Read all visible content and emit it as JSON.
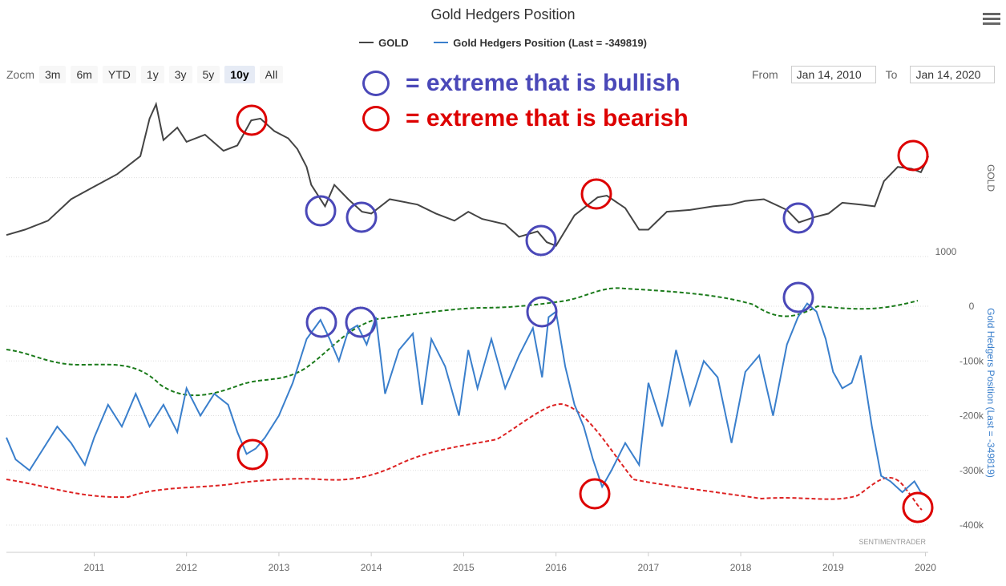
{
  "header": {
    "title": "Gold Hedgers Position"
  },
  "legend": {
    "items": [
      "GOLD",
      "Gold Hedgers Position (Last = -349819)"
    ]
  },
  "zoom": {
    "label": "Zocm",
    "buttons": [
      "3m",
      "6m",
      "YTD",
      "1y",
      "3y",
      "5y",
      "10y",
      "All"
    ],
    "active": "10y"
  },
  "range": {
    "from_label": "From",
    "from_value": "Jan 14, 2010",
    "to_label": "To",
    "to_value": "Jan 14, 2020"
  },
  "annotations": {
    "bullish_text": "= extreme that is bullish",
    "bullish_color": "#4a48b8",
    "bearish_text": "= extreme that is bearish",
    "bearish_color": "#dd0000"
  },
  "credit": "SENTIMENTRADER",
  "colors": {
    "gold": "#444444",
    "hedgers": "#3a7fcc",
    "upper_band": "#1a7a1a",
    "lower_band": "#dd2222",
    "bullish": "#4a48b8",
    "bearish": "#dd0000",
    "gridline": "#dddddd"
  },
  "chart_data": [
    {
      "type": "line",
      "series": [
        {
          "name": "GOLD",
          "x": [
            2010.05,
            2010.25,
            2010.5,
            2010.75,
            2011.0,
            2011.25,
            2011.5,
            2011.6,
            2011.67,
            2011.75,
            2011.9,
            2012.0,
            2012.2,
            2012.4,
            2012.55,
            2012.7,
            2012.8,
            2012.95,
            2013.1,
            2013.2,
            2013.3,
            2013.35,
            2013.5,
            2013.6,
            2013.75,
            2013.9,
            2014.0,
            2014.2,
            2014.5,
            2014.7,
            2014.9,
            2015.05,
            2015.2,
            2015.45,
            2015.6,
            2015.8,
            2015.9,
            2016.0,
            2016.2,
            2016.45,
            2016.55,
            2016.75,
            2016.9,
            2017.0,
            2017.2,
            2017.45,
            2017.7,
            2017.9,
            2018.05,
            2018.25,
            2018.5,
            2018.63,
            2018.8,
            2018.95,
            2019.1,
            2019.3,
            2019.45,
            2019.55,
            2019.7,
            2019.85,
            2019.95,
            2020.0,
            2020.03
          ],
          "y": [
            1120,
            1150,
            1200,
            1320,
            1390,
            1460,
            1560,
            1770,
            1850,
            1650,
            1720,
            1640,
            1680,
            1590,
            1620,
            1760,
            1770,
            1700,
            1660,
            1600,
            1500,
            1400,
            1280,
            1400,
            1320,
            1250,
            1240,
            1320,
            1290,
            1240,
            1200,
            1250,
            1210,
            1180,
            1110,
            1140,
            1080,
            1060,
            1230,
            1330,
            1340,
            1270,
            1150,
            1150,
            1250,
            1260,
            1280,
            1290,
            1310,
            1320,
            1260,
            1190,
            1220,
            1240,
            1300,
            1290,
            1280,
            1420,
            1500,
            1490,
            1470,
            1520,
            1560
          ],
          "ylim": [
            1000,
            1900
          ]
        }
      ],
      "axis_labels": [
        "GOLD"
      ],
      "tick_labels": {
        "y": [
          "1000"
        ]
      }
    },
    {
      "type": "line",
      "series": [
        {
          "name": "Gold Hedgers Position (Last = -349819)",
          "x": [
            2010.05,
            2010.15,
            2010.3,
            2010.45,
            2010.6,
            2010.75,
            2010.9,
            2011.0,
            2011.15,
            2011.3,
            2011.45,
            2011.6,
            2011.75,
            2011.9,
            2012.0,
            2012.15,
            2012.3,
            2012.45,
            2012.55,
            2012.65,
            2012.75,
            2012.85,
            2013.0,
            2013.15,
            2013.3,
            2013.45,
            2013.55,
            2013.65,
            2013.75,
            2013.85,
            2013.95,
            2014.05,
            2014.15,
            2014.3,
            2014.45,
            2014.55,
            2014.65,
            2014.8,
            2014.95,
            2015.05,
            2015.15,
            2015.3,
            2015.45,
            2015.6,
            2015.75,
            2015.85,
            2015.92,
            2016.0,
            2016.1,
            2016.2,
            2016.3,
            2016.4,
            2016.5,
            2016.6,
            2016.75,
            2016.9,
            2017.0,
            2017.15,
            2017.3,
            2017.45,
            2017.6,
            2017.75,
            2017.9,
            2018.05,
            2018.2,
            2018.35,
            2018.5,
            2018.62,
            2018.72,
            2018.82,
            2018.92,
            2019.0,
            2019.1,
            2019.2,
            2019.3,
            2019.42,
            2019.52,
            2019.62,
            2019.75,
            2019.88,
            2019.95,
            2020.03
          ],
          "y": [
            -240,
            -280,
            -300,
            -260,
            -220,
            -250,
            -290,
            -240,
            -180,
            -220,
            -160,
            -220,
            -180,
            -230,
            -150,
            -200,
            -160,
            -180,
            -230,
            -270,
            -260,
            -240,
            -200,
            -140,
            -60,
            -25,
            -60,
            -100,
            -45,
            -35,
            -70,
            -20,
            -160,
            -80,
            -50,
            -180,
            -60,
            -110,
            -200,
            -80,
            -150,
            -60,
            -150,
            -90,
            -40,
            -130,
            -20,
            -10,
            -110,
            -180,
            -220,
            -280,
            -330,
            -300,
            -250,
            -290,
            -140,
            -220,
            -80,
            -180,
            -100,
            -130,
            -250,
            -120,
            -90,
            -200,
            -70,
            -20,
            5,
            -10,
            -60,
            -120,
            -150,
            -140,
            -90,
            -220,
            -310,
            -320,
            -340,
            -320,
            -340,
            -350
          ],
          "ylim": [
            -400,
            0
          ]
        }
      ],
      "axis_labels": [
        "Gold Hedgers Position (Last = -349819)"
      ],
      "tick_labels": {
        "y": [
          "0",
          "-100k",
          "-200k",
          "-300k",
          "-400k"
        ],
        "x": [
          "2011",
          "2012",
          "2013",
          "2014",
          "2015",
          "2016",
          "2017",
          "2018",
          "2019",
          "2020"
        ]
      }
    }
  ]
}
